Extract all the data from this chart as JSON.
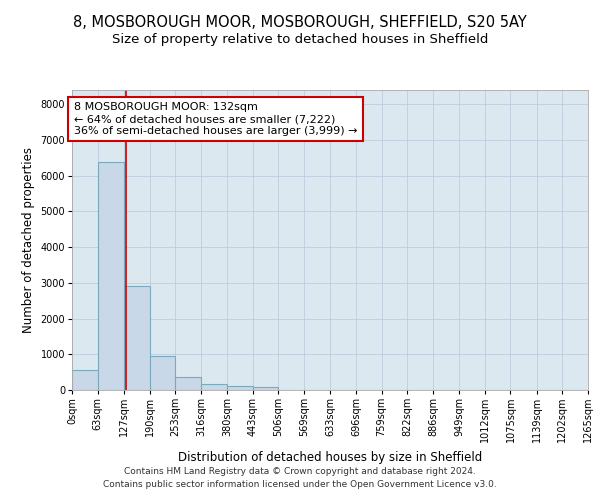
{
  "title_line1": "8, MOSBOROUGH MOOR, MOSBOROUGH, SHEFFIELD, S20 5AY",
  "title_line2": "Size of property relative to detached houses in Sheffield",
  "xlabel": "Distribution of detached houses by size in Sheffield",
  "ylabel": "Number of detached properties",
  "footnote_line1": "Contains HM Land Registry data © Crown copyright and database right 2024.",
  "footnote_line2": "Contains public sector information licensed under the Open Government Licence v3.0.",
  "bar_edges": [
    0,
    63,
    127,
    190,
    253,
    316,
    380,
    443,
    506,
    569,
    633,
    696,
    759,
    822,
    886,
    949,
    1012,
    1075,
    1139,
    1202,
    1265
  ],
  "bar_heights": [
    570,
    6380,
    2900,
    950,
    360,
    175,
    110,
    80,
    0,
    0,
    0,
    0,
    0,
    0,
    0,
    0,
    0,
    0,
    0,
    0
  ],
  "bar_color": "#c8d8e8",
  "bar_edgecolor": "#7aaabb",
  "bar_linewidth": 0.8,
  "vline_x": 132,
  "vline_color": "#cc0000",
  "vline_linewidth": 1.2,
  "annotation_text": "8 MOSBOROUGH MOOR: 132sqm\n← 64% of detached houses are smaller (7,222)\n36% of semi-detached houses are larger (3,999) →",
  "ylim": [
    0,
    8400
  ],
  "yticks": [
    0,
    1000,
    2000,
    3000,
    4000,
    5000,
    6000,
    7000,
    8000
  ],
  "xlim": [
    0,
    1265
  ],
  "background_color": "#ffffff",
  "axes_facecolor": "#dce8f0",
  "grid_color": "#b8c8d8",
  "tick_labels": [
    "0sqm",
    "63sqm",
    "127sqm",
    "190sqm",
    "253sqm",
    "316sqm",
    "380sqm",
    "443sqm",
    "506sqm",
    "569sqm",
    "633sqm",
    "696sqm",
    "759sqm",
    "822sqm",
    "886sqm",
    "949sqm",
    "1012sqm",
    "1075sqm",
    "1139sqm",
    "1202sqm",
    "1265sqm"
  ],
  "title1_fontsize": 10.5,
  "title2_fontsize": 9.5,
  "axis_label_fontsize": 8.5,
  "tick_fontsize": 7,
  "annotation_fontsize": 8,
  "footnote_fontsize": 6.5
}
